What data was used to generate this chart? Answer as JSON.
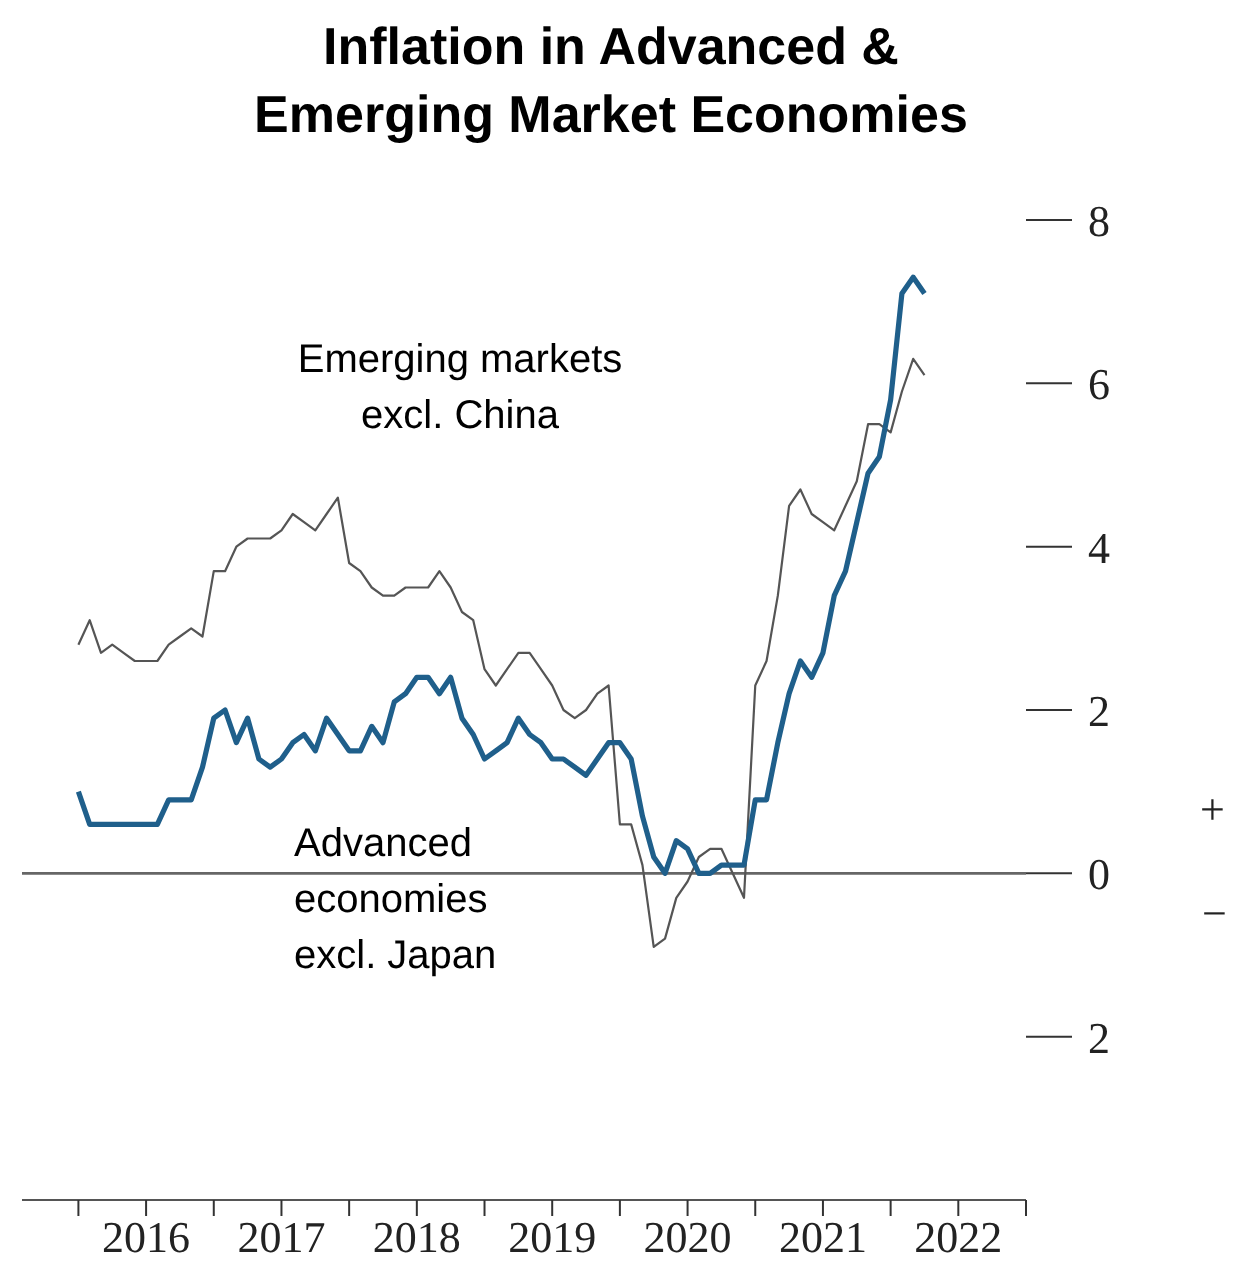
{
  "chart_data": {
    "type": "line",
    "title": "Inflation in Advanced & Emerging Market Economies",
    "x": [
      "2016-01",
      "2016-02",
      "2016-03",
      "2016-04",
      "2016-05",
      "2016-06",
      "2016-07",
      "2016-08",
      "2016-09",
      "2016-10",
      "2016-11",
      "2016-12",
      "2017-01",
      "2017-02",
      "2017-03",
      "2017-04",
      "2017-05",
      "2017-06",
      "2017-07",
      "2017-08",
      "2017-09",
      "2017-10",
      "2017-11",
      "2017-12",
      "2018-01",
      "2018-02",
      "2018-03",
      "2018-04",
      "2018-05",
      "2018-06",
      "2018-07",
      "2018-08",
      "2018-09",
      "2018-10",
      "2018-11",
      "2018-12",
      "2019-01",
      "2019-02",
      "2019-03",
      "2019-04",
      "2019-05",
      "2019-06",
      "2019-07",
      "2019-08",
      "2019-09",
      "2019-10",
      "2019-11",
      "2019-12",
      "2020-01",
      "2020-02",
      "2020-03",
      "2020-04",
      "2020-05",
      "2020-06",
      "2020-07",
      "2020-08",
      "2020-09",
      "2020-10",
      "2020-11",
      "2020-12",
      "2021-01",
      "2021-02",
      "2021-03",
      "2021-04",
      "2021-05",
      "2021-06",
      "2021-07",
      "2021-08",
      "2021-09",
      "2021-10",
      "2021-11",
      "2021-12",
      "2022-01",
      "2022-02",
      "2022-03",
      "2022-04"
    ],
    "series": [
      {
        "name": "Emerging markets excl. China",
        "color": "#555555",
        "values": [
          2.8,
          3.1,
          2.7,
          2.8,
          2.7,
          2.6,
          2.6,
          2.6,
          2.8,
          2.9,
          3.0,
          2.9,
          3.7,
          3.7,
          4.0,
          4.1,
          4.1,
          4.1,
          4.2,
          4.4,
          4.3,
          4.2,
          4.4,
          4.6,
          3.8,
          3.7,
          3.5,
          3.4,
          3.4,
          3.5,
          3.5,
          3.5,
          3.7,
          3.5,
          3.2,
          3.1,
          2.5,
          2.3,
          2.5,
          2.7,
          2.7,
          2.5,
          2.3,
          2.0,
          1.9,
          2.0,
          2.2,
          2.3,
          0.6,
          0.6,
          0.1,
          -0.9,
          -0.8,
          -0.3,
          -0.1,
          0.2,
          0.3,
          0.3,
          0.0,
          -0.3,
          2.3,
          2.6,
          3.4,
          4.5,
          4.7,
          4.4,
          4.3,
          4.2,
          4.5,
          4.8,
          5.5,
          5.5,
          5.4,
          5.9,
          6.3,
          6.1
        ]
      },
      {
        "name": "Advanced economies excl. Japan",
        "color": "#1f5f8b",
        "values": [
          1.0,
          0.6,
          0.6,
          0.6,
          0.6,
          0.6,
          0.6,
          0.6,
          0.9,
          0.9,
          0.9,
          1.3,
          1.9,
          2.0,
          1.6,
          1.9,
          1.4,
          1.3,
          1.4,
          1.6,
          1.7,
          1.5,
          1.9,
          1.7,
          1.5,
          1.5,
          1.8,
          1.6,
          2.1,
          2.2,
          2.4,
          2.4,
          2.2,
          2.4,
          1.9,
          1.7,
          1.4,
          1.5,
          1.6,
          1.9,
          1.7,
          1.6,
          1.4,
          1.4,
          1.3,
          1.2,
          1.4,
          1.6,
          1.6,
          1.4,
          0.7,
          0.2,
          0.0,
          0.4,
          0.3,
          0.0,
          0.0,
          0.1,
          0.1,
          0.1,
          0.9,
          0.9,
          1.6,
          2.2,
          2.6,
          2.4,
          2.7,
          3.4,
          3.7,
          4.3,
          4.9,
          5.1,
          5.8,
          7.1,
          7.3,
          7.1
        ]
      }
    ],
    "xlim": [
      "2015-08",
      "2023-01"
    ],
    "xticks": [
      {
        "value": "2016-01",
        "label": null
      },
      {
        "value": "2016-07",
        "label": "2016"
      },
      {
        "value": "2017-01",
        "label": null
      },
      {
        "value": "2017-07",
        "label": "2017"
      },
      {
        "value": "2018-01",
        "label": null
      },
      {
        "value": "2018-07",
        "label": "2018"
      },
      {
        "value": "2019-01",
        "label": null
      },
      {
        "value": "2019-07",
        "label": "2019"
      },
      {
        "value": "2020-01",
        "label": null
      },
      {
        "value": "2020-07",
        "label": "2020"
      },
      {
        "value": "2021-01",
        "label": null
      },
      {
        "value": "2021-07",
        "label": "2021"
      },
      {
        "value": "2022-01",
        "label": null
      },
      {
        "value": "2022-07",
        "label": "2022"
      },
      {
        "value": "2023-01",
        "label": null
      }
    ],
    "ylim": [
      -4,
      8
    ],
    "yticks": [
      8,
      6,
      4,
      2,
      0,
      {
        "value": -2,
        "label": "2"
      }
    ],
    "ref_lines": [
      {
        "axis": "y",
        "value": 0,
        "color": "#666666"
      }
    ],
    "annotations": [
      "+",
      "−"
    ],
    "marker": "none",
    "line_style": "solid",
    "grid": false,
    "legend": false
  }
}
